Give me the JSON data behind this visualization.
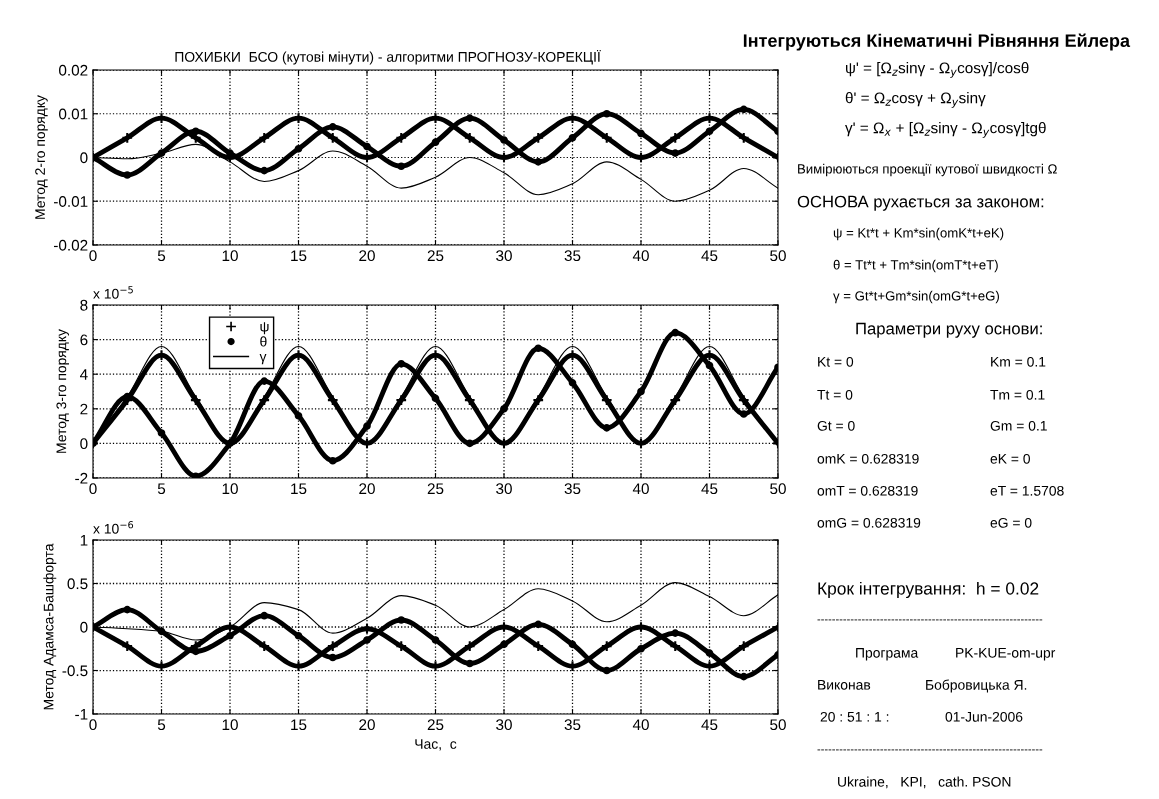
{
  "chart_data": [
    {
      "type": "line",
      "title": "ПОХИБКИ  БСО (кутові мінути) - алгоритми ПРОГНОЗУ-КОРЕКЦІЇ",
      "ylabel": "Метод 2-го порядку",
      "x": [
        0,
        2.5,
        5,
        7.5,
        10,
        12.5,
        15,
        17.5,
        20,
        22.5,
        25,
        27.5,
        30,
        32.5,
        35,
        37.5,
        40,
        42.5,
        45,
        47.5,
        50
      ],
      "series": [
        {
          "color": "#000000",
          "marker": "cross",
          "values": [
            0,
            0.0045,
            0.009,
            0.0045,
            0,
            0.0045,
            0.009,
            0.0045,
            0,
            0.0045,
            0.009,
            0.0045,
            0,
            0.0045,
            0.009,
            0.0045,
            0,
            0.0045,
            0.009,
            0.0045,
            0
          ]
        },
        {
          "color": "#000000",
          "marker": "circle",
          "values": [
            0,
            -0.004,
            0.001,
            0.006,
            0.001,
            -0.003,
            0.002,
            0.007,
            0.0025,
            -0.002,
            0.0035,
            0.009,
            0.004,
            -0.001,
            0.0045,
            0.01,
            0.0055,
            0.001,
            0.006,
            0.011,
            0.006
          ]
        },
        {
          "color": "#000000",
          "marker": "none",
          "values": [
            0,
            -0.0003,
            0.001,
            0.003,
            -0.001,
            -0.0055,
            -0.003,
            0.0015,
            -0.002,
            -0.007,
            -0.0045,
            0,
            -0.0035,
            -0.0085,
            -0.006,
            -0.001,
            -0.005,
            -0.01,
            -0.0075,
            -0.0025,
            -0.007
          ]
        }
      ],
      "xlim": [
        0,
        50
      ],
      "xticks": [
        0,
        5,
        10,
        15,
        20,
        25,
        30,
        35,
        40,
        45,
        50
      ],
      "ylim": [
        -0.02,
        0.02
      ],
      "yticks": [
        -0.02,
        -0.01,
        0,
        0.01,
        0.02
      ],
      "grid": true,
      "line_style": "solid",
      "annotations": [
        "Інтегруються Кінематичні Рівняння Ейлера",
        "ψ' = [Ω$_{z}$sinγ - Ω$_{y}$cosγ]/cosθ",
        "θ' = Ω$_{z}$cosγ + Ω$_{y}$sinγ",
        "γ' = Ω$_{x}$ + [Ω$_{z}$sinγ - Ω$_{y}$cosγ]tgθ",
        "Вимірюються проекції кутової швидкості Ω",
        "ОСНОВА рухається за законом:",
        "ψ = Kt*t + Km*sin(omK*t+eK)",
        "θ = Tt*t + Tm*sin(omT*t+eT)",
        "γ = Gt*t+Gm*sin(omG*t+eG)",
        "Параметри руху основи:",
        "Kt = 0",
        "Km = 0.1",
        "Tt = 0",
        "Tm = 0.1",
        "Gt = 0",
        "Gm = 0.1",
        "omK = 0.628319",
        "eK = 0",
        "omT = 0.628319",
        "eT = 1.5708",
        "omG = 0.628319",
        "eG = 0",
        "Крок інтегрування:  h = 0.02",
        "-------------------------------------------------------------",
        "Програма",
        "PK-KUE-om-upr",
        "Виконав",
        "Бобровицька Я.",
        "20 : 51 : 1 :",
        "01-Jun-2006",
        "-------------------------------------------------------------",
        "Ukraine,   KPI,   cath. PSON"
      ]
    },
    {
      "type": "line",
      "ylabel": "Метод 3-го порядку",
      "x": [
        0,
        2.5,
        5,
        7.5,
        10,
        12.5,
        15,
        17.5,
        20,
        22.5,
        25,
        27.5,
        30,
        32.5,
        35,
        37.5,
        40,
        42.5,
        45,
        47.5,
        50
      ],
      "series": [
        {
          "name": "ψ",
          "color": "#000000",
          "marker": "cross",
          "values": [
            0,
            2.5,
            5.1,
            2.5,
            0,
            2.5,
            5.1,
            2.5,
            0,
            2.5,
            5.1,
            2.5,
            0,
            2.5,
            5.1,
            2.5,
            0,
            2.5,
            5.1,
            2.5,
            0
          ]
        },
        {
          "name": "θ",
          "color": "#000000",
          "marker": "circle",
          "values": [
            0,
            2.7,
            0.6,
            -1.9,
            0,
            3.6,
            1.6,
            -1,
            1,
            4.6,
            2.6,
            0,
            2,
            5.5,
            3.5,
            0.9,
            3,
            6.4,
            4.5,
            1.7,
            4.4
          ]
        },
        {
          "name": "γ",
          "color": "#000000",
          "marker": "none",
          "values": [
            0,
            2.7,
            5.6,
            2.7,
            0,
            2.7,
            5.6,
            2.7,
            0,
            2.7,
            5.6,
            2.7,
            0,
            2.7,
            5.6,
            2.7,
            0,
            2.7,
            5.6,
            2.7,
            0
          ]
        }
      ],
      "xlim": [
        0,
        50
      ],
      "xticks": [
        0,
        5,
        10,
        15,
        20,
        25,
        30,
        35,
        40,
        45,
        50
      ],
      "ylim": [
        -2,
        8
      ],
      "yticks": [
        -2,
        0,
        2,
        4,
        6,
        8
      ],
      "grid": true,
      "legend": "top left",
      "line_style": "solid",
      "annotations": [
        "x 10$^{−5}$"
      ]
    },
    {
      "type": "line",
      "ylabel": "Метод Адамса-Башфорта",
      "xlabel": "Час,  с",
      "x": [
        0,
        2.5,
        5,
        7.5,
        10,
        12.5,
        15,
        17.5,
        20,
        22.5,
        25,
        27.5,
        30,
        32.5,
        35,
        37.5,
        40,
        42.5,
        45,
        47.5,
        50
      ],
      "series": [
        {
          "color": "#000000",
          "marker": "cross",
          "values": [
            0,
            -0.22,
            -0.45,
            -0.22,
            0,
            -0.22,
            -0.45,
            -0.22,
            -0.02,
            -0.22,
            -0.45,
            -0.22,
            0,
            -0.22,
            -0.45,
            -0.22,
            0,
            -0.22,
            -0.45,
            -0.22,
            0
          ]
        },
        {
          "color": "#000000",
          "marker": "circle",
          "values": [
            0,
            0.2,
            -0.05,
            -0.28,
            -0.1,
            0.13,
            -0.1,
            -0.35,
            -0.15,
            0.08,
            -0.15,
            -0.42,
            -0.2,
            0.03,
            -0.2,
            -0.5,
            -0.25,
            -0.07,
            -0.3,
            -0.57,
            -0.32
          ]
        },
        {
          "color": "#000000",
          "marker": "none",
          "values": [
            0,
            -0.02,
            -0.05,
            -0.15,
            0,
            0.28,
            0.2,
            -0.07,
            0.1,
            0.36,
            0.25,
            0,
            0.2,
            0.44,
            0.3,
            0.06,
            0.25,
            0.51,
            0.35,
            0.13,
            0.37
          ]
        }
      ],
      "xlim": [
        0,
        50
      ],
      "xticks": [
        0,
        5,
        10,
        15,
        20,
        25,
        30,
        35,
        40,
        45,
        50
      ],
      "ylim": [
        -1,
        1
      ],
      "yticks": [
        -1,
        -0.5,
        0,
        0.5,
        1
      ],
      "grid": true,
      "line_style": "solid",
      "annotations": [
        "x 10$^{−6}$"
      ]
    }
  ]
}
